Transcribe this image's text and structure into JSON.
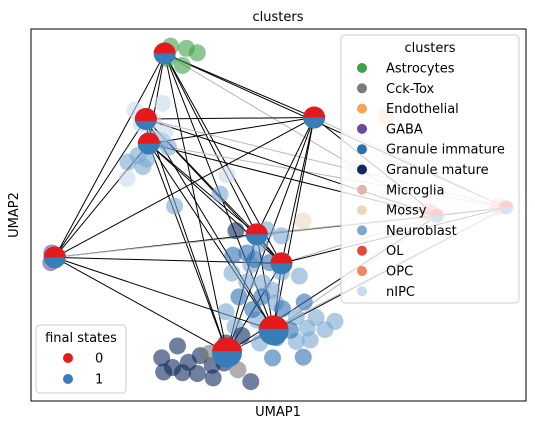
{
  "chart_data": {
    "type": "scatter",
    "title": "clusters",
    "xlabel": "UMAP1",
    "ylabel": "UMAP2",
    "grid": false,
    "clusters_legend": {
      "title": "clusters",
      "placement": "top-right",
      "entries": [
        {
          "name": "Astrocytes",
          "color": "#3da24a"
        },
        {
          "name": "Cck-Tox",
          "color": "#7a7a7a"
        },
        {
          "name": "Endothelial",
          "color": "#f5a35a"
        },
        {
          "name": "GABA",
          "color": "#6a4aa3"
        },
        {
          "name": "Granule immature",
          "color": "#2e6fb0"
        },
        {
          "name": "Granule mature",
          "color": "#0f2a5e"
        },
        {
          "name": "Microglia",
          "color": "#dfb8aa"
        },
        {
          "name": "Mossy",
          "color": "#e8d8bf"
        },
        {
          "name": "Neuroblast",
          "color": "#7aa9d2"
        },
        {
          "name": "OL",
          "color": "#e24a37"
        },
        {
          "name": "OPC",
          "color": "#f2855e"
        },
        {
          "name": "nIPC",
          "color": "#c8dbec"
        }
      ]
    },
    "final_states_legend": {
      "title": "final states",
      "placement": "bottom-left",
      "entries": [
        {
          "name": "0",
          "color": "#e41a1c"
        },
        {
          "name": "1",
          "color": "#377eb8"
        }
      ]
    },
    "axis_ranges": {
      "x": [
        0,
        100
      ],
      "y": [
        0,
        100
      ]
    },
    "cells": {
      "Astrocytes": [
        [
          28.2,
          95.4
        ],
        [
          31.4,
          94.8
        ],
        [
          27.6,
          92.0
        ],
        [
          30.6,
          90.2
        ],
        [
          33.6,
          93.6
        ]
      ],
      "Neuroblast": [
        [
          19.6,
          64.2
        ],
        [
          21.6,
          66.0
        ],
        [
          23.4,
          65.0
        ],
        [
          26.4,
          70.0
        ],
        [
          27.8,
          68.2
        ],
        [
          24.2,
          70.6
        ],
        [
          22.6,
          63.0
        ],
        [
          38.2,
          55.6
        ],
        [
          47.6,
          46.0
        ],
        [
          50.6,
          44.4
        ],
        [
          46.2,
          42.2
        ],
        [
          44.4,
          36.6
        ],
        [
          40.6,
          34.4
        ],
        [
          43.6,
          32.0
        ],
        [
          46.8,
          31.8
        ],
        [
          48.6,
          29.8
        ],
        [
          50.6,
          34.6
        ],
        [
          54.2,
          33.6
        ],
        [
          39.4,
          24.0
        ],
        [
          41.2,
          20.0
        ],
        [
          45.6,
          21.8
        ],
        [
          49.2,
          19.6
        ],
        [
          53.6,
          22.6
        ],
        [
          55.8,
          19.6
        ],
        [
          57.6,
          22.4
        ],
        [
          59.4,
          19.2
        ],
        [
          61.4,
          21.4
        ],
        [
          56.4,
          16.4
        ],
        [
          53.6,
          16.0
        ],
        [
          49.4,
          26.4
        ],
        [
          29.0,
          52.4
        ],
        [
          46.2,
          15.6
        ]
      ],
      "nIPC": [
        [
          22.2,
          74.4
        ],
        [
          24.6,
          75.4
        ],
        [
          27.0,
          72.2
        ],
        [
          21.0,
          78.2
        ],
        [
          26.6,
          80.0
        ],
        [
          19.4,
          59.8
        ],
        [
          39.6,
          60.8
        ]
      ],
      "Granule immature": [
        [
          40.8,
          39.2
        ],
        [
          43.6,
          39.8
        ],
        [
          45.2,
          38.0
        ],
        [
          48.2,
          37.2
        ],
        [
          42.0,
          28.0
        ],
        [
          44.8,
          24.6
        ],
        [
          50.8,
          24.8
        ],
        [
          52.4,
          19.0
        ],
        [
          55.0,
          11.8
        ],
        [
          49.6,
          17.0
        ],
        [
          48.8,
          11.6
        ],
        [
          55.2,
          26.6
        ],
        [
          46.6,
          28.0
        ]
      ],
      "Granule mature": [
        [
          29.6,
          14.8
        ],
        [
          26.4,
          11.6
        ],
        [
          28.6,
          9.0
        ],
        [
          31.8,
          10.4
        ],
        [
          34.2,
          12.2
        ],
        [
          36.6,
          9.6
        ],
        [
          33.6,
          7.4
        ],
        [
          36.8,
          6.2
        ],
        [
          39.0,
          10.2
        ],
        [
          26.8,
          7.8
        ],
        [
          30.6,
          7.6
        ],
        [
          44.4,
          5.2
        ],
        [
          39.4,
          15.6
        ],
        [
          42.6,
          17.6
        ],
        [
          41.4,
          45.8
        ]
      ],
      "GABA": [
        [
          4.2,
          39.8
        ],
        [
          4.0,
          37.2
        ]
      ],
      "Cck-Tox": [
        [
          36.0,
          12.8
        ],
        [
          41.8,
          8.4
        ]
      ],
      "Microglia": [
        [
          81.8,
          49.8
        ]
      ],
      "OPC": [
        [
          94.4,
          52.2
        ]
      ],
      "Mossy": [
        [
          55.0,
          48.4
        ],
        [
          65.4,
          62.0
        ]
      ],
      "Endothelial": [
        [
          71.6,
          76.8
        ]
      ],
      "OL": [
        [
          80.4,
          50.8
        ]
      ]
    },
    "pie_nodes": [
      {
        "x": 27.0,
        "y": 93.4,
        "state_1_fraction": 0.5
      },
      {
        "x": 23.8,
        "y": 69.2,
        "state_1_fraction": 0.5
      },
      {
        "x": 23.2,
        "y": 75.8,
        "state_1_fraction": 0.4
      },
      {
        "x": 4.8,
        "y": 38.6,
        "state_1_fraction": 0.5
      },
      {
        "x": 45.6,
        "y": 44.8,
        "state_1_fraction": 0.5
      },
      {
        "x": 50.6,
        "y": 37.0,
        "state_1_fraction": 0.5
      },
      {
        "x": 49.0,
        "y": 19.0,
        "state_1_fraction": 0.55
      },
      {
        "x": 39.6,
        "y": 13.0,
        "state_1_fraction": 0.55
      },
      {
        "x": 57.2,
        "y": 76.2,
        "state_1_fraction": 0.5
      },
      {
        "x": 82.0,
        "y": 49.8,
        "state_1_fraction": 0.5
      },
      {
        "x": 96.0,
        "y": 52.0,
        "state_1_fraction": 0.5
      }
    ],
    "edges": [
      [
        0,
        1
      ],
      [
        0,
        2
      ],
      [
        0,
        3
      ],
      [
        0,
        4
      ],
      [
        0,
        5
      ],
      [
        0,
        6
      ],
      [
        0,
        7
      ],
      [
        0,
        8
      ],
      [
        0,
        9
      ],
      [
        0,
        10
      ],
      [
        1,
        2
      ],
      [
        1,
        3
      ],
      [
        1,
        4
      ],
      [
        1,
        5
      ],
      [
        1,
        6
      ],
      [
        1,
        7
      ],
      [
        1,
        8
      ],
      [
        1,
        9
      ],
      [
        1,
        10
      ],
      [
        2,
        3
      ],
      [
        2,
        4
      ],
      [
        2,
        5
      ],
      [
        2,
        6
      ],
      [
        2,
        7
      ],
      [
        2,
        8
      ],
      [
        2,
        9
      ],
      [
        2,
        10
      ],
      [
        3,
        4
      ],
      [
        3,
        5
      ],
      [
        3,
        6
      ],
      [
        3,
        7
      ],
      [
        3,
        8
      ],
      [
        3,
        9
      ],
      [
        4,
        5
      ],
      [
        4,
        6
      ],
      [
        4,
        7
      ],
      [
        4,
        8
      ],
      [
        4,
        9
      ],
      [
        4,
        10
      ],
      [
        5,
        6
      ],
      [
        5,
        7
      ],
      [
        5,
        8
      ],
      [
        5,
        9
      ],
      [
        5,
        10
      ],
      [
        6,
        7
      ],
      [
        6,
        8
      ],
      [
        6,
        9
      ],
      [
        6,
        10
      ],
      [
        7,
        8
      ],
      [
        7,
        9
      ],
      [
        7,
        10
      ],
      [
        8,
        9
      ],
      [
        8,
        10
      ],
      [
        9,
        10
      ]
    ]
  }
}
